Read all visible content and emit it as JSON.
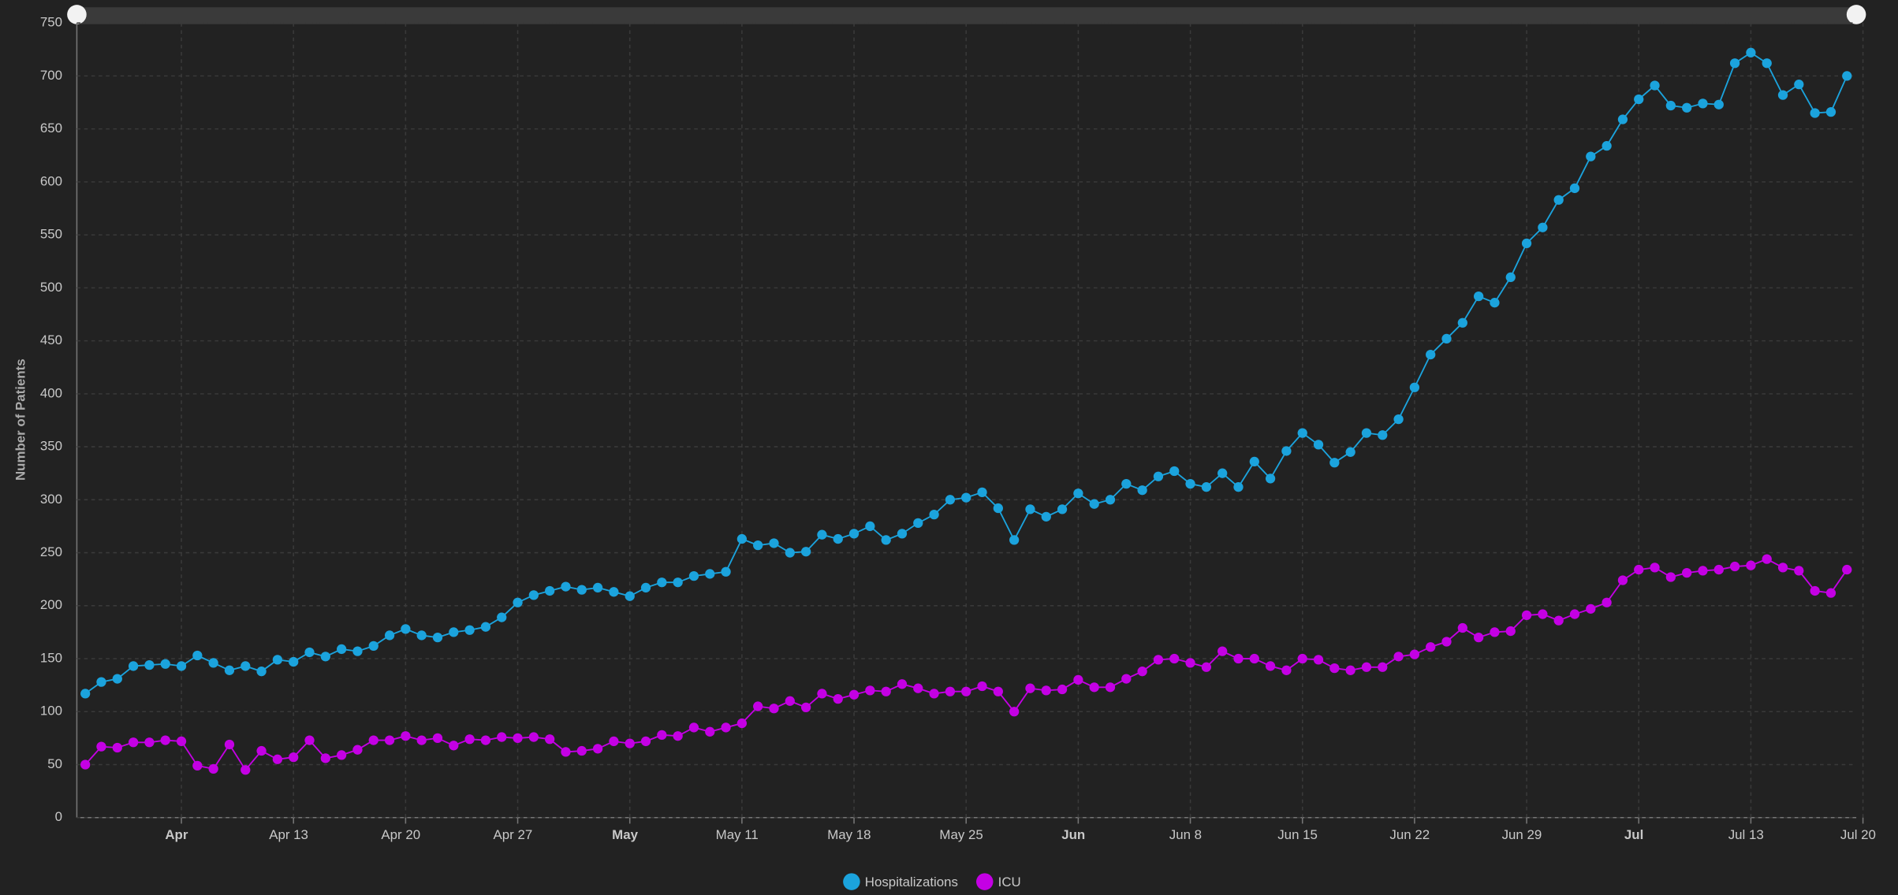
{
  "chart_data": {
    "type": "line",
    "y_label": "Number of Patients",
    "categories": [
      "Mar 31",
      "Apr 1",
      "Apr 2",
      "Apr 3",
      "Apr 4",
      "Apr 5",
      "Apr 6",
      "Apr 7",
      "Apr 8",
      "Apr 9",
      "Apr 10",
      "Apr 11",
      "Apr 12",
      "Apr 13",
      "Apr 14",
      "Apr 15",
      "Apr 16",
      "Apr 17",
      "Apr 18",
      "Apr 19",
      "Apr 20",
      "Apr 21",
      "Apr 22",
      "Apr 23",
      "Apr 24",
      "Apr 25",
      "Apr 26",
      "Apr 27",
      "Apr 28",
      "Apr 29",
      "Apr 30",
      "May 1",
      "May 2",
      "May 3",
      "May 4",
      "May 5",
      "May 6",
      "May 7",
      "May 8",
      "May 9",
      "May 10",
      "May 11",
      "May 12",
      "May 13",
      "May 14",
      "May 15",
      "May 16",
      "May 17",
      "May 18",
      "May 19",
      "May 20",
      "May 21",
      "May 22",
      "May 23",
      "May 24",
      "May 25",
      "May 26",
      "May 27",
      "May 28",
      "May 29",
      "May 30",
      "May 31",
      "Jun 1",
      "Jun 2",
      "Jun 3",
      "Jun 4",
      "Jun 5",
      "Jun 6",
      "Jun 7",
      "Jun 8",
      "Jun 9",
      "Jun 10",
      "Jun 11",
      "Jun 12",
      "Jun 13",
      "Jun 14",
      "Jun 15",
      "Jun 16",
      "Jun 17",
      "Jun 18",
      "Jun 19",
      "Jun 20",
      "Jun 21",
      "Jun 22",
      "Jun 23",
      "Jun 24",
      "Jun 25",
      "Jun 26",
      "Jun 27",
      "Jun 28",
      "Jun 29",
      "Jun 30",
      "Jul 1",
      "Jul 2",
      "Jul 3",
      "Jul 4",
      "Jul 5",
      "Jul 6",
      "Jul 7",
      "Jul 8",
      "Jul 9",
      "Jul 10",
      "Jul 11",
      "Jul 12",
      "Jul 13",
      "Jul 14",
      "Jul 15",
      "Jul 16",
      "Jul 17",
      "Jul 18",
      "Jul 19",
      "Jul 20"
    ],
    "series": [
      {
        "name": "Hospitalizations",
        "color": "#1ba3dd",
        "values": [
          117,
          128,
          131,
          143,
          144,
          145,
          143,
          153,
          146,
          139,
          143,
          138,
          149,
          147,
          156,
          152,
          159,
          157,
          162,
          172,
          178,
          172,
          170,
          175,
          177,
          180,
          189,
          203,
          210,
          214,
          218,
          215,
          217,
          213,
          209,
          217,
          222,
          222,
          228,
          230,
          232,
          263,
          257,
          259,
          250,
          251,
          267,
          263,
          268,
          275,
          262,
          268,
          278,
          286,
          300,
          302,
          307,
          292,
          262,
          291,
          284,
          291,
          306,
          296,
          300,
          315,
          309,
          322,
          327,
          315,
          312,
          325,
          312,
          336,
          320,
          346,
          363,
          352,
          335,
          345,
          363,
          361,
          376,
          406,
          437,
          452,
          467,
          492,
          486,
          510,
          542,
          557,
          583,
          594,
          624,
          634,
          659,
          678,
          691,
          672,
          670,
          674,
          673,
          712,
          722,
          712,
          682,
          692,
          665,
          666,
          700,
          null
        ]
      },
      {
        "name": "ICU",
        "color": "#c400e4",
        "values": [
          50,
          67,
          66,
          71,
          71,
          73,
          72,
          49,
          46,
          69,
          45,
          63,
          55,
          57,
          73,
          56,
          59,
          64,
          73,
          73,
          77,
          73,
          75,
          68,
          74,
          73,
          76,
          75,
          76,
          74,
          62,
          63,
          65,
          72,
          70,
          72,
          78,
          77,
          85,
          81,
          85,
          89,
          105,
          103,
          110,
          104,
          117,
          112,
          116,
          120,
          119,
          126,
          122,
          117,
          119,
          119,
          124,
          119,
          100,
          122,
          120,
          121,
          130,
          123,
          123,
          131,
          138,
          149,
          150,
          146,
          142,
          157,
          150,
          150,
          143,
          139,
          150,
          149,
          141,
          139,
          142,
          142,
          152,
          154,
          161,
          166,
          179,
          170,
          175,
          176,
          191,
          192,
          186,
          192,
          197,
          203,
          224,
          234,
          236,
          227,
          231,
          233,
          234,
          237,
          238,
          244,
          236,
          233,
          214,
          212,
          234,
          null
        ]
      }
    ],
    "xticks": [
      {
        "value": "Apr 6",
        "label": "Apr"
      },
      "Apr 13",
      "Apr 20",
      "Apr 27",
      {
        "value": "May 4",
        "label": "May"
      },
      "May 11",
      "May 18",
      "May 25",
      {
        "value": "Jun 1",
        "label": "Jun"
      },
      "Jun 8",
      "Jun 15",
      "Jun 22",
      "Jun 29",
      {
        "value": "Jul 6",
        "label": "Jul"
      },
      "Jul 13",
      "Jul 20"
    ],
    "ylim": [
      0,
      750
    ],
    "yticks": [
      0,
      50,
      100,
      150,
      200,
      250,
      300,
      350,
      400,
      450,
      500,
      550,
      600,
      650,
      700,
      750
    ],
    "grid": true
  }
}
